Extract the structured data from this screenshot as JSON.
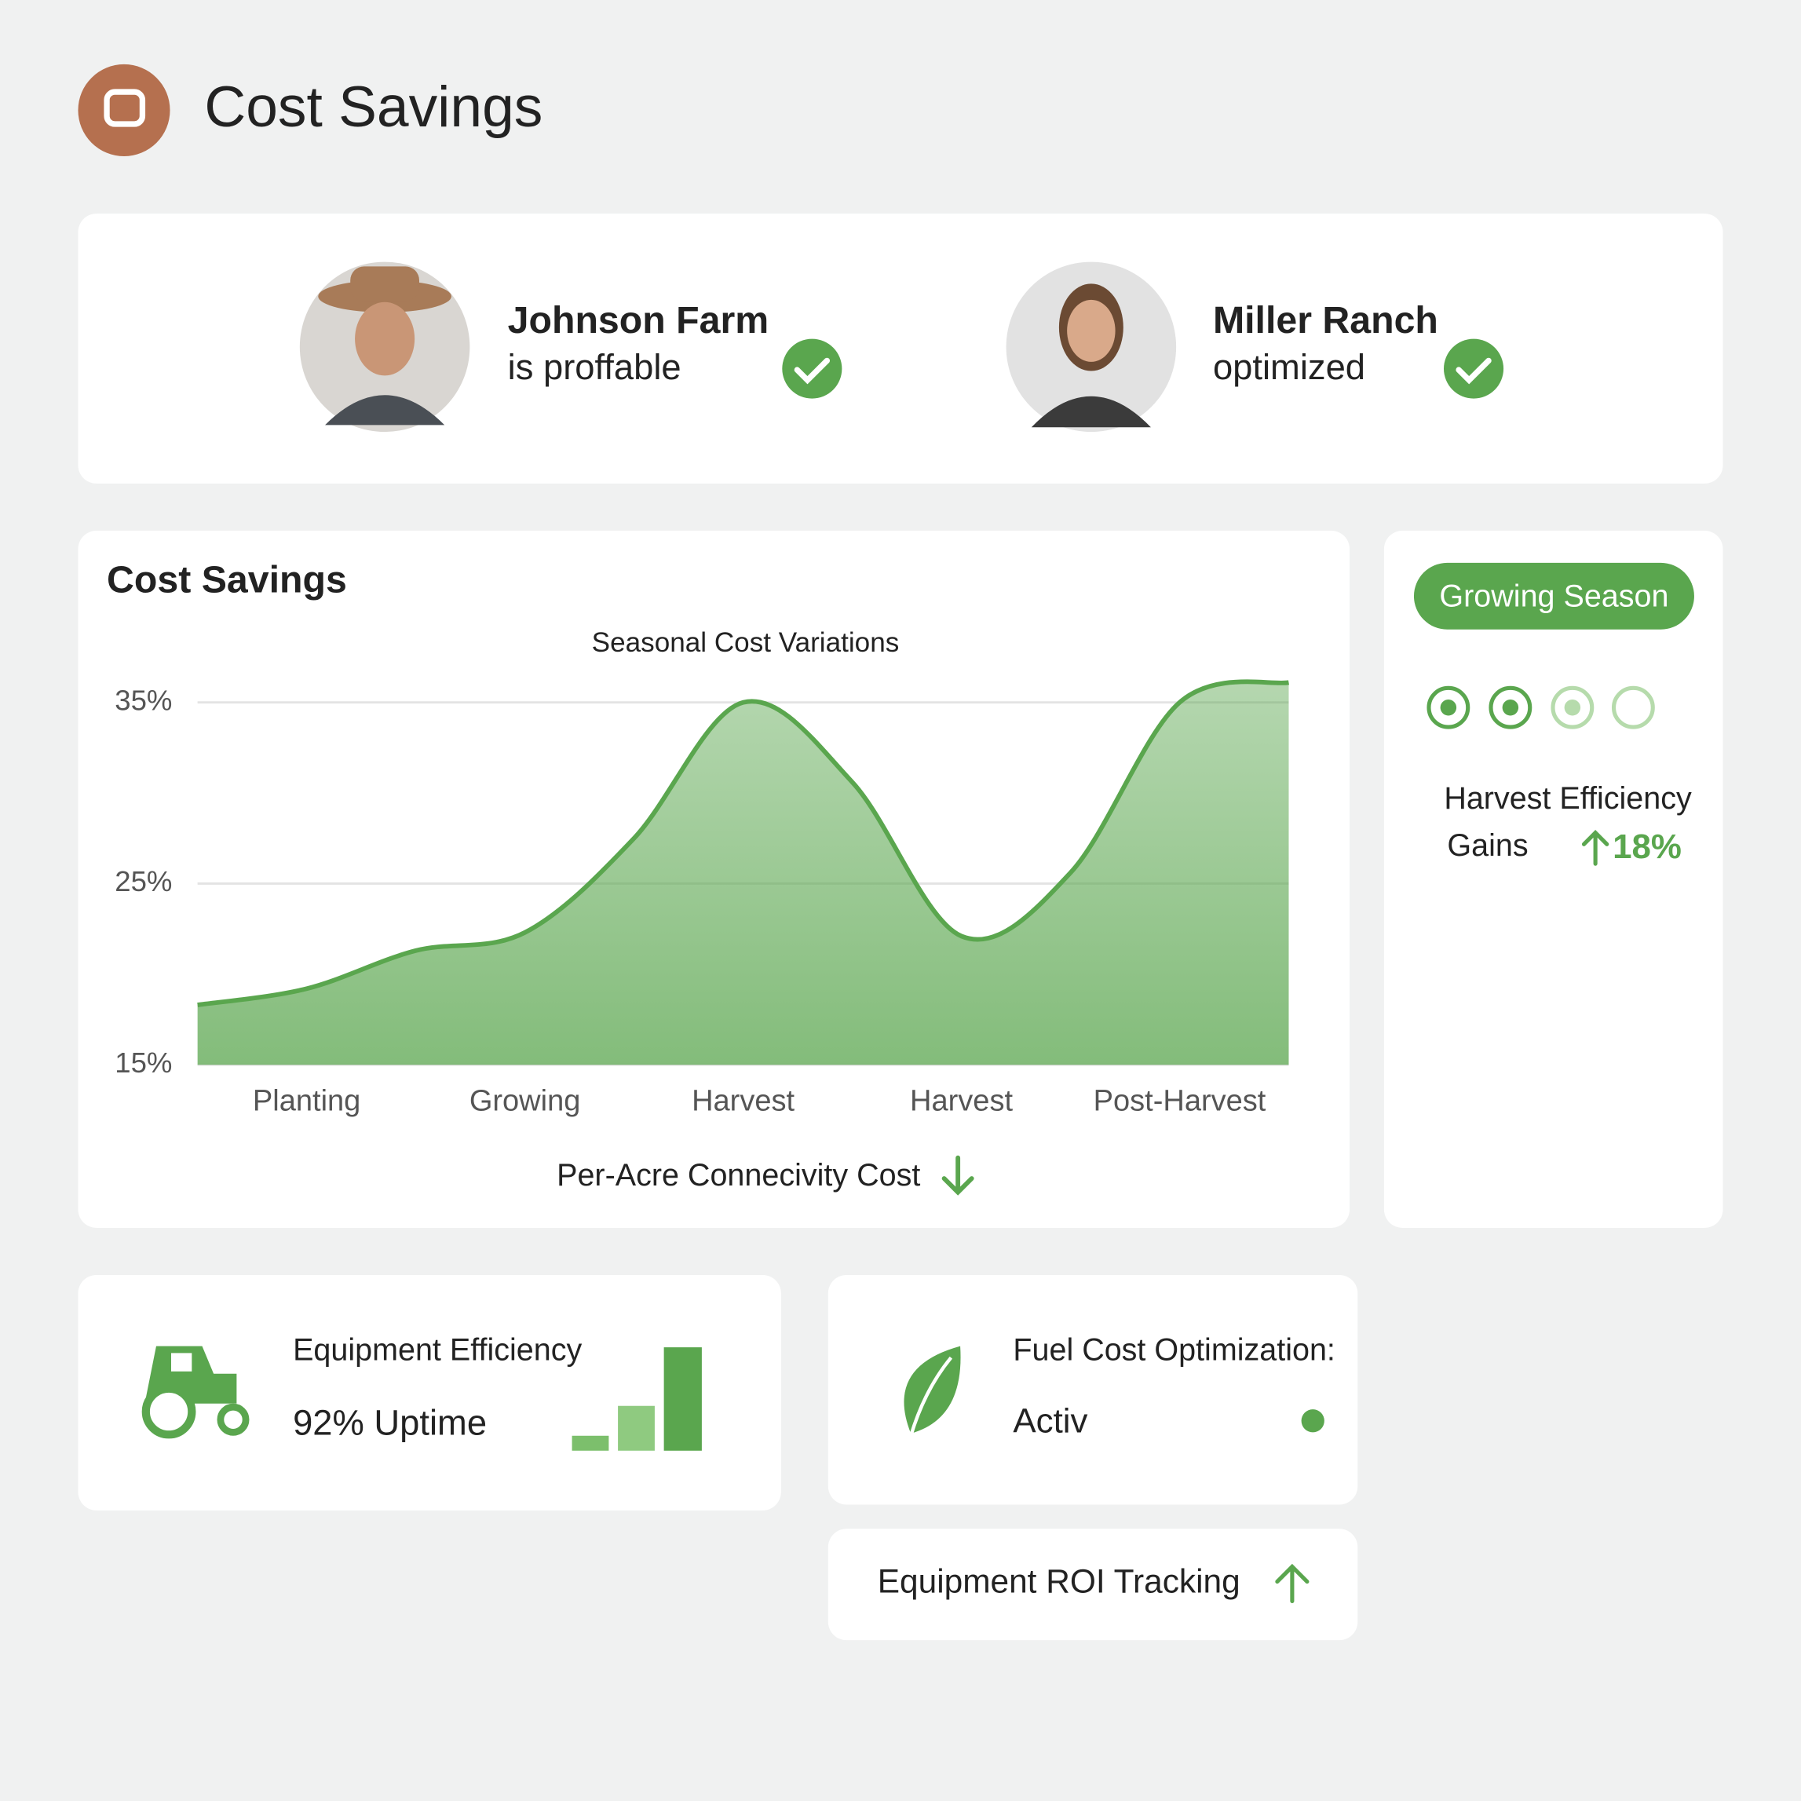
{
  "header": {
    "title": "Cost Savings"
  },
  "profiles": [
    {
      "name": "Johnson Farm",
      "status": "is proffable"
    },
    {
      "name": "Miller Ranch",
      "status": "optimized"
    }
  ],
  "chart_card": {
    "title": "Cost Savings",
    "chart_data": {
      "type": "area",
      "title": "Seasonal Cost Variations",
      "categories": [
        null,
        "Planting",
        null,
        "Growing",
        null,
        "Harvest",
        null,
        "Harvest",
        null,
        "Post-Harvest",
        null
      ],
      "values": [
        18.3,
        19.2,
        21.3,
        22.3,
        27.5,
        35,
        30.6,
        22.1,
        25.6,
        35,
        36.1
      ],
      "color": "#5aa64e",
      "ylim": [
        15,
        37
      ],
      "yticks": [
        {
          "value": 15,
          "label": "15%"
        },
        {
          "value": 25,
          "label": "25%"
        },
        {
          "value": 35,
          "label": "35%"
        }
      ],
      "grid": true
    },
    "footer": "Per-Acre Connecivity Cost"
  },
  "season_card": {
    "badge": "Growing Season",
    "metric_title": "Harvest Efficiency",
    "metric_label": "Gains",
    "metric_value": "18%"
  },
  "equipment_card": {
    "title": "Equipment Efficiency",
    "value": "92% Uptime"
  },
  "fuel_card": {
    "title": "Fuel Cost Optimization:",
    "status": "Activ"
  },
  "roi_card": {
    "title": "Equipment ROI Tracking"
  }
}
